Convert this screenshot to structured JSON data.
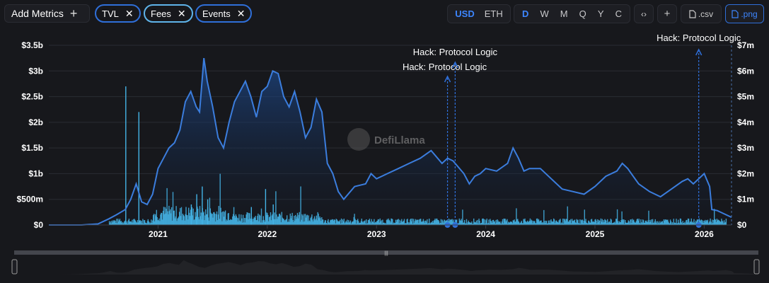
{
  "toolbar": {
    "add_metrics_label": "Add Metrics",
    "metrics": [
      "TVL",
      "Fees",
      "Events"
    ],
    "currency_options": [
      "USD",
      "ETH"
    ],
    "currency_selected": "USD",
    "period_options": [
      "D",
      "W",
      "M",
      "Q",
      "Y",
      "C"
    ],
    "period_selected": "D",
    "csv_label": ".csv",
    "png_label": ".png"
  },
  "watermark": "DefiLlama",
  "colors": {
    "tvl": "#3b7ddd",
    "fees": "#44b4e6",
    "events": "#2f6fd9",
    "background": "#17181c",
    "grid": "#2a2c33"
  },
  "chart_data": {
    "type": "line",
    "x_ticks": [
      "2021",
      "2022",
      "2023",
      "2024",
      "2025",
      "2026"
    ],
    "x_range": [
      2020.0,
      2026.25
    ],
    "left_axis": {
      "ticks": [
        "$0",
        "$500m",
        "$1b",
        "$1.5b",
        "$2b",
        "$2.5b",
        "$3b",
        "$3.5b"
      ],
      "range_usd_b": [
        0,
        3.5
      ]
    },
    "right_axis": {
      "ticks": [
        "$0",
        "$1m",
        "$2m",
        "$3m",
        "$4m",
        "$5m",
        "$6m",
        "$7m"
      ],
      "range_usd_m": [
        0,
        7
      ]
    },
    "series": [
      {
        "name": "TVL",
        "axis": "left",
        "unit": "USD billions",
        "points": [
          [
            2020.0,
            0.0
          ],
          [
            2020.3,
            0.0
          ],
          [
            2020.45,
            0.02
          ],
          [
            2020.55,
            0.12
          ],
          [
            2020.62,
            0.2
          ],
          [
            2020.7,
            0.3
          ],
          [
            2020.75,
            0.5
          ],
          [
            2020.8,
            0.8
          ],
          [
            2020.85,
            0.45
          ],
          [
            2020.9,
            0.4
          ],
          [
            2020.95,
            0.6
          ],
          [
            2021.0,
            1.1
          ],
          [
            2021.05,
            1.3
          ],
          [
            2021.1,
            1.5
          ],
          [
            2021.15,
            1.6
          ],
          [
            2021.2,
            1.85
          ],
          [
            2021.25,
            2.4
          ],
          [
            2021.3,
            2.6
          ],
          [
            2021.35,
            2.3
          ],
          [
            2021.38,
            2.2
          ],
          [
            2021.42,
            3.25
          ],
          [
            2021.45,
            2.8
          ],
          [
            2021.5,
            2.3
          ],
          [
            2021.55,
            1.7
          ],
          [
            2021.6,
            1.5
          ],
          [
            2021.65,
            2.0
          ],
          [
            2021.7,
            2.4
          ],
          [
            2021.75,
            2.6
          ],
          [
            2021.8,
            2.8
          ],
          [
            2021.85,
            2.5
          ],
          [
            2021.9,
            2.1
          ],
          [
            2021.95,
            2.6
          ],
          [
            2022.0,
            2.7
          ],
          [
            2022.05,
            3.0
          ],
          [
            2022.1,
            2.95
          ],
          [
            2022.15,
            2.5
          ],
          [
            2022.2,
            2.3
          ],
          [
            2022.25,
            2.6
          ],
          [
            2022.3,
            2.2
          ],
          [
            2022.35,
            1.7
          ],
          [
            2022.4,
            1.9
          ],
          [
            2022.45,
            2.45
          ],
          [
            2022.5,
            2.2
          ],
          [
            2022.55,
            1.2
          ],
          [
            2022.6,
            1.0
          ],
          [
            2022.65,
            0.65
          ],
          [
            2022.7,
            0.5
          ],
          [
            2022.8,
            0.75
          ],
          [
            2022.9,
            0.8
          ],
          [
            2022.95,
            1.0
          ],
          [
            2023.0,
            0.9
          ],
          [
            2023.1,
            1.0
          ],
          [
            2023.2,
            1.1
          ],
          [
            2023.3,
            1.2
          ],
          [
            2023.4,
            1.3
          ],
          [
            2023.5,
            1.45
          ],
          [
            2023.6,
            1.2
          ],
          [
            2023.65,
            1.3
          ],
          [
            2023.7,
            1.25
          ],
          [
            2023.8,
            1.0
          ],
          [
            2023.85,
            0.8
          ],
          [
            2023.9,
            0.95
          ],
          [
            2023.95,
            1.0
          ],
          [
            2024.0,
            1.1
          ],
          [
            2024.1,
            1.05
          ],
          [
            2024.2,
            1.2
          ],
          [
            2024.25,
            1.5
          ],
          [
            2024.3,
            1.3
          ],
          [
            2024.35,
            1.05
          ],
          [
            2024.4,
            1.1
          ],
          [
            2024.5,
            1.1
          ],
          [
            2024.6,
            0.9
          ],
          [
            2024.7,
            0.7
          ],
          [
            2024.8,
            0.65
          ],
          [
            2024.9,
            0.6
          ],
          [
            2025.0,
            0.75
          ],
          [
            2025.1,
            0.95
          ],
          [
            2025.2,
            1.05
          ],
          [
            2025.25,
            1.2
          ],
          [
            2025.3,
            1.1
          ],
          [
            2025.35,
            0.95
          ],
          [
            2025.4,
            0.8
          ],
          [
            2025.5,
            0.65
          ],
          [
            2025.6,
            0.55
          ],
          [
            2025.7,
            0.7
          ],
          [
            2025.8,
            0.85
          ],
          [
            2025.85,
            0.9
          ],
          [
            2025.9,
            0.8
          ],
          [
            2026.0,
            1.0
          ],
          [
            2026.05,
            0.75
          ],
          [
            2026.07,
            0.3
          ],
          [
            2026.12,
            0.28
          ],
          [
            2026.2,
            0.2
          ],
          [
            2026.25,
            0.15
          ]
        ]
      },
      {
        "name": "Fees",
        "axis": "right",
        "unit": "USD millions",
        "spikes": [
          [
            2020.7,
            5.4
          ],
          [
            2020.82,
            4.4
          ],
          [
            2021.3,
            0.8
          ],
          [
            2021.35,
            1.2
          ],
          [
            2021.4,
            1.5
          ],
          [
            2021.45,
            1.0
          ],
          [
            2021.85,
            0.7
          ],
          [
            2021.98,
            1.4
          ],
          [
            2022.05,
            0.8
          ]
        ],
        "baseline_m": 0.15
      },
      {
        "name": "Events",
        "type": "markers",
        "events": [
          {
            "date": 2023.65,
            "label": "Hack: Protocol Logic"
          },
          {
            "date": 2023.72,
            "label": "Hack: Protocol Logic"
          },
          {
            "date": 2025.95,
            "label": "Hack: Protocol Logic"
          }
        ]
      }
    ]
  }
}
